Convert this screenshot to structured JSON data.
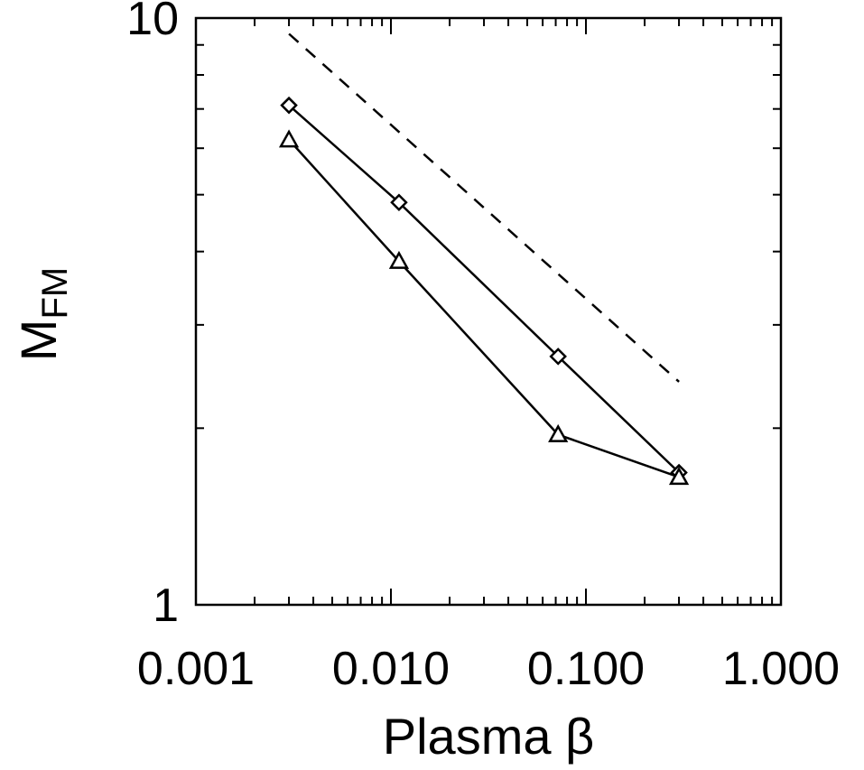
{
  "chart_data": {
    "type": "line",
    "xlabel": "Plasma β",
    "ylabel": "M",
    "ylabel_subscript": "FM",
    "x_scale": "log",
    "y_scale": "log",
    "xlim": [
      0.001,
      1.0
    ],
    "ylim": [
      1,
      10
    ],
    "x_ticks": [
      0.001,
      0.01,
      0.1,
      1.0
    ],
    "x_tick_labels": [
      "0.001",
      "0.010",
      "0.100",
      "1.000"
    ],
    "y_ticks": [
      1,
      10
    ],
    "y_tick_labels": [
      "1",
      "10"
    ],
    "grid": false,
    "series": [
      {
        "marker": "diamond",
        "style": "solid",
        "color": "#000000",
        "x": [
          0.003,
          0.011,
          0.072,
          0.3
        ],
        "y": [
          7.1,
          4.85,
          2.65,
          1.68
        ]
      },
      {
        "marker": "triangle",
        "style": "solid",
        "color": "#000000",
        "x": [
          0.003,
          0.011,
          0.072,
          0.3
        ],
        "y": [
          6.2,
          3.85,
          1.95,
          1.65
        ]
      },
      {
        "marker": "none",
        "style": "dashed",
        "color": "#000000",
        "x": [
          0.003,
          0.3
        ],
        "y": [
          9.4,
          2.4
        ]
      }
    ]
  }
}
